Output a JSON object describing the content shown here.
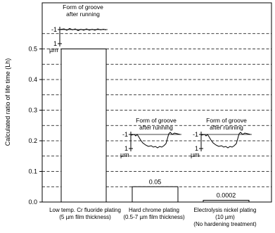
{
  "chart_data": {
    "type": "bar",
    "ylabel": "Calculated ratio of life time (Lh)",
    "ylim": [
      0,
      0.6
    ],
    "yticks": [
      0.0,
      0.1,
      0.2,
      0.3,
      0.4,
      0.5
    ],
    "ytick_labels": [
      "0.0",
      "0.1",
      "0.2",
      "0.3",
      "0.4",
      "0.5"
    ],
    "grid": "dashed horizontal lines every 0.05",
    "categories": [
      {
        "lines": [
          "Low temp. Cr fluoride plating",
          "(5 µm film thickness)"
        ]
      },
      {
        "lines": [
          "Hard chrome plating",
          "(0.5-7 µm film thickness)"
        ]
      },
      {
        "lines": [
          "Electrolysis nickel plating",
          "(10 µm)",
          "(No hardening treatment)"
        ]
      }
    ],
    "values": [
      0.5,
      0.05,
      0.0002
    ],
    "data_labels": [
      "",
      "0.05",
      "0.0002"
    ],
    "insets": [
      {
        "title_line1": "Form of groove",
        "title_line2": "after running",
        "tick_top": "-1",
        "tick_bottom": "1",
        "unit": "µm",
        "profile": "flat"
      },
      {
        "title_line1": "Form of groove",
        "title_line2": "after running",
        "tick_top": "-1",
        "tick_bottom": "1",
        "unit": "µm",
        "profile": "deep"
      },
      {
        "title_line1": "Form of groove",
        "title_line2": "after running",
        "tick_top": "-1",
        "tick_bottom": "1",
        "unit": "µm",
        "profile": "deep"
      }
    ]
  }
}
